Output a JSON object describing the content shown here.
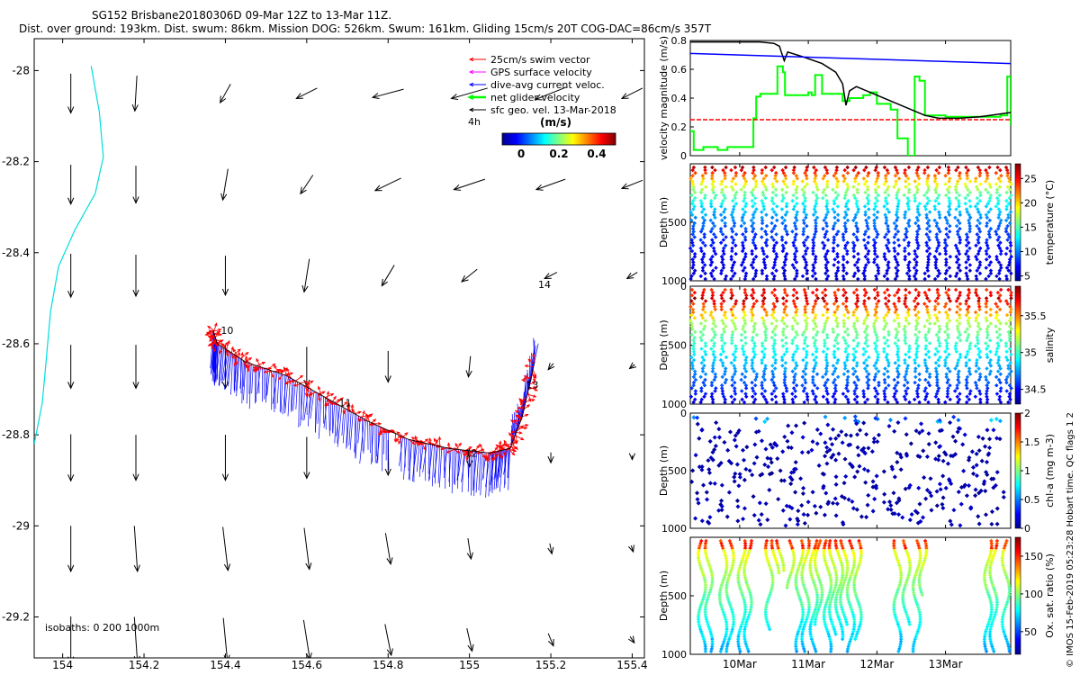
{
  "header": {
    "title": "SG152 Brisbane20180306D 09-Mar 12Z to 13-Mar 11Z.",
    "subtitle": "Dist. over ground: 193km. Dist. swum: 86km. Mission DOG: 526km. Swum: 161km. Gliding 15cm/s 20T COG-DAC=86cm/s 357T"
  },
  "footer_vertical": "© IMOS 15-Feb-2019 05:23:28 Hobart time. QC flags 1  2",
  "colors": {
    "swim": "#ff0000",
    "gps": "#ff00ff",
    "dac": "#0000ff",
    "net": "#00ff00",
    "sfc": "#000000",
    "isobath": "#00dddd"
  },
  "chart_data": [
    {
      "type": "scatter",
      "id": "map",
      "title": "Glider track with velocity vectors",
      "xlim": [
        153.93,
        155.43
      ],
      "ylim": [
        -29.29,
        -27.93
      ],
      "xticks": [
        154,
        154.2,
        154.4,
        154.6,
        154.8,
        155,
        155.2,
        155.4
      ],
      "xtick_labels": [
        "154",
        "154.2",
        "154.4",
        "154.6",
        "154.8",
        "155",
        "155.2",
        "155.4"
      ],
      "yticks": [
        -28,
        -28.2,
        -28.4,
        -28.6,
        -28.8,
        -29,
        -29.2
      ],
      "ytick_labels": [
        "-28",
        "-28.2",
        "-28.4",
        "-28.6",
        "-28.8",
        "-29",
        "-29.2"
      ],
      "legend": {
        "position": "top-right",
        "items": [
          {
            "label": "25cm/s swim vector",
            "color": "#ff0000"
          },
          {
            "label": "GPS surface velocity",
            "color": "#ff00ff"
          },
          {
            "label": "dive-avg current veloc.",
            "color": "#0000ff"
          },
          {
            "label": "net glider velocity",
            "color": "#00ff00"
          },
          {
            "label": "sfc geo. vel. 13-Mar-2018",
            "color": "#000000"
          }
        ],
        "note": "4h",
        "colorbar_title": "(m/s)",
        "colorbar_range": [
          -0.1,
          0.5
        ],
        "colorbar_ticks": [
          "0",
          "0.2",
          "0.4"
        ]
      },
      "isobaths_label": "isobaths: 0   200  1000m",
      "isobath_1000m": [
        [
          154.07,
          -27.99
        ],
        [
          154.09,
          -28.09
        ],
        [
          154.1,
          -28.19
        ],
        [
          154.08,
          -28.27
        ],
        [
          154.03,
          -28.35
        ],
        [
          153.99,
          -28.43
        ],
        [
          153.97,
          -28.53
        ],
        [
          153.96,
          -28.63
        ],
        [
          153.95,
          -28.73
        ],
        [
          153.93,
          -28.82
        ]
      ],
      "track_labels": [
        {
          "label": "10",
          "x": 154.38,
          "y": -28.57
        },
        {
          "label": "11",
          "x": 154.67,
          "y": -28.73
        },
        {
          "label": "12",
          "x": 154.98,
          "y": -28.84
        },
        {
          "label": "13",
          "x": 155.13,
          "y": -28.69
        },
        {
          "label": "14",
          "x": 155.16,
          "y": -28.47
        }
      ],
      "track": [
        [
          154.37,
          -28.57
        ],
        [
          154.38,
          -28.6
        ],
        [
          154.45,
          -28.64
        ],
        [
          154.55,
          -28.67
        ],
        [
          154.65,
          -28.72
        ],
        [
          154.75,
          -28.77
        ],
        [
          154.85,
          -28.81
        ],
        [
          154.95,
          -28.83
        ],
        [
          155.05,
          -28.84
        ],
        [
          155.1,
          -28.83
        ],
        [
          155.13,
          -28.76
        ],
        [
          155.16,
          -28.64
        ]
      ],
      "geo_velocity_field": {
        "lon": [
          154.02,
          154.18,
          154.4,
          154.6,
          154.8,
          155.0,
          155.2,
          155.4
        ],
        "lat": [
          -28.05,
          -28.25,
          -28.45,
          -28.65,
          -28.85,
          -29.05,
          -29.25
        ],
        "u": [
          [
            0,
            -0.02,
            -0.1,
            -0.2,
            -0.3,
            -0.35,
            -0.3,
            -0.2
          ],
          [
            0,
            0,
            -0.05,
            -0.12,
            -0.25,
            -0.3,
            -0.28,
            -0.2
          ],
          [
            0,
            0,
            0,
            -0.05,
            -0.12,
            -0.15,
            -0.12,
            -0.1
          ],
          [
            0,
            0,
            0,
            0,
            0,
            -0.02,
            -0.05,
            -0.05
          ],
          [
            0,
            0,
            0,
            0,
            0,
            0,
            0,
            0
          ],
          [
            0,
            0.03,
            0.05,
            0.05,
            0.05,
            0.03,
            0.02,
            0.02
          ],
          [
            0,
            0.03,
            0.04,
            0.06,
            0.06,
            0.05,
            0.05,
            0.04
          ]
        ],
        "v": [
          [
            -0.38,
            -0.34,
            -0.18,
            -0.1,
            -0.08,
            -0.1,
            -0.12,
            -0.1
          ],
          [
            -0.38,
            -0.36,
            -0.3,
            -0.18,
            -0.12,
            -0.1,
            -0.1,
            -0.08
          ],
          [
            -0.42,
            -0.4,
            -0.38,
            -0.32,
            -0.2,
            -0.12,
            -0.06,
            -0.06
          ],
          [
            -0.42,
            -0.42,
            -0.42,
            -0.38,
            -0.3,
            -0.2,
            -0.06,
            -0.04
          ],
          [
            -0.45,
            -0.44,
            -0.44,
            -0.4,
            -0.34,
            -0.18,
            -0.1,
            -0.04
          ],
          [
            -0.44,
            -0.44,
            -0.42,
            -0.4,
            -0.3,
            -0.2,
            -0.1,
            -0.06
          ],
          [
            -0.45,
            -0.44,
            -0.42,
            -0.38,
            -0.3,
            -0.22,
            -0.12,
            -0.06
          ]
        ]
      }
    },
    {
      "type": "line",
      "id": "velocity",
      "ylabel": "velocity magnitude (m/s)",
      "xlim": [
        9.28,
        13.95
      ],
      "ylim": [
        0,
        0.8
      ],
      "yticks": [
        0,
        0.2,
        0.4,
        0.6,
        0.8
      ],
      "ytick_labels": [
        "0",
        "0.2",
        "0.4",
        "0.6",
        "0.8"
      ],
      "series": [
        {
          "name": "net glider velocity",
          "color": "#00ff00",
          "step": true,
          "x": [
            9.28,
            9.33,
            9.36,
            9.47,
            9.57,
            9.68,
            9.73,
            9.82,
            9.94,
            10.0,
            10.2,
            10.24,
            10.3,
            10.46,
            10.55,
            10.63,
            10.66,
            10.88,
            11.0,
            11.05,
            11.1,
            11.2,
            11.35,
            11.5,
            11.6,
            11.8,
            11.9,
            12.0,
            12.2,
            12.3,
            12.45,
            12.55,
            12.62,
            12.7,
            13.0,
            13.2,
            13.5,
            13.8,
            13.9,
            13.95
          ],
          "y": [
            0.17,
            0.04,
            0.04,
            0.06,
            0.06,
            0.04,
            0.04,
            0.06,
            0.06,
            0.06,
            0.26,
            0.41,
            0.43,
            0.43,
            0.62,
            0.58,
            0.42,
            0.42,
            0.44,
            0.42,
            0.56,
            0.43,
            0.43,
            0.38,
            0.4,
            0.42,
            0.44,
            0.36,
            0.32,
            0.12,
            0.0,
            0.55,
            0.52,
            0.28,
            0.27,
            0.27,
            0.27,
            0.28,
            0.55,
            0.21
          ]
        },
        {
          "name": "dive-avg current",
          "color": "#000000",
          "x": [
            9.28,
            9.6,
            9.9,
            10.3,
            10.5,
            10.58,
            10.6,
            10.65,
            10.7,
            10.9,
            11.2,
            11.4,
            11.5,
            11.55,
            11.6,
            11.7,
            11.9,
            12.2,
            12.5,
            12.7,
            12.9,
            13.2,
            13.5,
            13.8,
            13.95
          ],
          "y": [
            0.79,
            0.79,
            0.79,
            0.79,
            0.78,
            0.76,
            0.73,
            0.66,
            0.72,
            0.69,
            0.64,
            0.58,
            0.5,
            0.35,
            0.45,
            0.48,
            0.44,
            0.38,
            0.32,
            0.28,
            0.26,
            0.26,
            0.27,
            0.29,
            0.3
          ]
        },
        {
          "name": "glider speed",
          "color": "#0000ff",
          "x": [
            9.28,
            13.95
          ],
          "y": [
            0.71,
            0.64
          ]
        },
        {
          "name": "25cm/s reference",
          "color": "#ff0000",
          "dashed": true,
          "x": [
            9.28,
            13.95
          ],
          "y": [
            0.25,
            0.25
          ]
        }
      ]
    },
    {
      "type": "heatmap",
      "id": "temperature",
      "ylabel": "Depth (m)",
      "colorbar_label": "temperature (°C)",
      "ylim": [
        1000,
        0
      ],
      "yticks": [
        500,
        1000
      ],
      "ytick_labels": [
        "500",
        "1000"
      ],
      "crange": [
        4,
        28
      ],
      "cticks": [
        5,
        10,
        15,
        20,
        25
      ],
      "ctick_labels": [
        "5",
        "10",
        "15",
        "20",
        "25"
      ],
      "surface_value": 27,
      "deep_value": 5,
      "profile_count": 32
    },
    {
      "type": "heatmap",
      "id": "salinity",
      "ylabel": "Depth (m)",
      "colorbar_label": "salinity",
      "ylim": [
        1000,
        0
      ],
      "yticks": [
        0,
        500,
        1000
      ],
      "ytick_labels": [
        "0",
        "500",
        "1000"
      ],
      "crange": [
        34.3,
        35.9
      ],
      "cticks": [
        34.5,
        35,
        35.5
      ],
      "ctick_labels": [
        "34.5",
        "35",
        "35.5"
      ],
      "surface_value": 35.6,
      "max_value": 35.85,
      "deep_value": 34.45,
      "profile_count": 32
    },
    {
      "type": "scatter",
      "id": "chla",
      "ylabel": "Depth (m)",
      "colorbar_label": "chl-a (mg m-3)",
      "ylim": [
        1000,
        0
      ],
      "yticks": [
        0,
        500,
        1000
      ],
      "ytick_labels": [
        "0",
        "500",
        "1000"
      ],
      "crange": [
        0,
        2
      ],
      "cticks": [
        0,
        0.5,
        1,
        1.5,
        2
      ],
      "ctick_labels": [
        "0",
        "0.5",
        "1",
        "1.5",
        "2"
      ],
      "point_count": 420
    },
    {
      "type": "heatmap",
      "id": "oxygen",
      "ylabel": "Depth (m)",
      "colorbar_label": "Ox. sat. ratio (%)",
      "xlim": [
        9.28,
        13.95
      ],
      "xticks": [
        10,
        11,
        12,
        13
      ],
      "xtick_labels": [
        "10Mar",
        "11Mar",
        "12Mar",
        "13Mar"
      ],
      "ylim": [
        1000,
        0
      ],
      "yticks": [
        500,
        1000
      ],
      "ytick_labels": [
        "500",
        "1000"
      ],
      "crange": [
        20,
        175
      ],
      "cticks": [
        50,
        100,
        150
      ],
      "ctick_labels": [
        "50",
        "100",
        "150"
      ],
      "profiles": [
        {
          "t": 9.45,
          "top": 0,
          "bottom": 1000
        },
        {
          "t": 9.55,
          "top": 0,
          "bottom": 1000
        },
        {
          "t": 9.76,
          "top": 0,
          "bottom": 1000
        },
        {
          "t": 9.86,
          "top": 0,
          "bottom": 1000
        },
        {
          "t": 10.03,
          "top": 0,
          "bottom": 1000
        },
        {
          "t": 10.12,
          "top": 0,
          "bottom": 1000
        },
        {
          "t": 10.43,
          "top": 0,
          "bottom": 800
        },
        {
          "t": 10.52,
          "top": 0,
          "bottom": 300
        },
        {
          "t": 10.59,
          "top": 0,
          "bottom": 280
        },
        {
          "t": 10.74,
          "top": 0,
          "bottom": 420
        },
        {
          "t": 10.87,
          "top": 0,
          "bottom": 1000
        },
        {
          "t": 10.96,
          "top": 0,
          "bottom": 1000
        },
        {
          "t": 11.08,
          "top": 0,
          "bottom": 1000
        },
        {
          "t": 11.15,
          "top": 0,
          "bottom": 750
        },
        {
          "t": 11.28,
          "top": 0,
          "bottom": 1000
        },
        {
          "t": 11.36,
          "top": 0,
          "bottom": 850
        },
        {
          "t": 11.45,
          "top": 0,
          "bottom": 900
        },
        {
          "t": 11.52,
          "top": 0,
          "bottom": 750
        },
        {
          "t": 11.62,
          "top": 0,
          "bottom": 1000
        },
        {
          "t": 11.72,
          "top": 0,
          "bottom": 880
        },
        {
          "t": 12.3,
          "top": 0,
          "bottom": 1000
        },
        {
          "t": 12.43,
          "top": 0,
          "bottom": 750
        },
        {
          "t": 12.58,
          "top": 0,
          "bottom": 1000
        },
        {
          "t": 12.67,
          "top": 0,
          "bottom": 500
        },
        {
          "t": 13.62,
          "top": 0,
          "bottom": 1000
        },
        {
          "t": 13.7,
          "top": 0,
          "bottom": 1000
        },
        {
          "t": 13.88,
          "top": 0,
          "bottom": 1000
        }
      ]
    }
  ]
}
